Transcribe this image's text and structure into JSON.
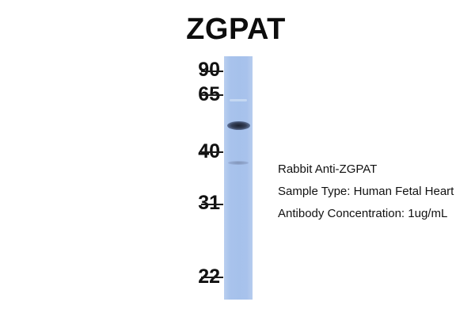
{
  "title": "ZGPAT",
  "markers": [
    {
      "label": "90"
    },
    {
      "label": "65"
    },
    {
      "label": "40"
    },
    {
      "label": "31"
    },
    {
      "label": "22"
    }
  ],
  "info": {
    "antibody": "Rabbit Anti-ZGPAT",
    "sample_type": "Sample Type: Human Fetal Heart",
    "concentration": "Antibody Concentration: 1ug/mL"
  },
  "colors": {
    "lane": "#a6c1eb",
    "band": "#2a3346"
  }
}
